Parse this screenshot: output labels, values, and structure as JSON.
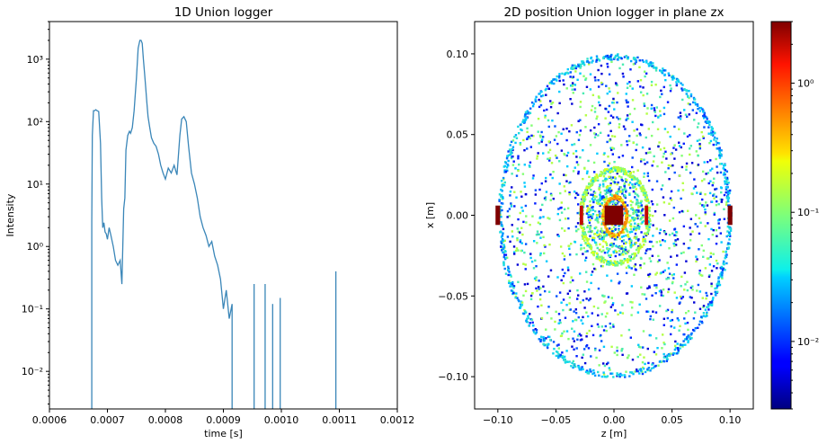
{
  "chart_data": [
    {
      "type": "line",
      "title": "1D Union logger",
      "xlabel": "time [s]",
      "ylabel": "Intensity",
      "yscale": "log",
      "xlim": [
        0.0006,
        0.0012
      ],
      "ylim": [
        0.0025,
        4000
      ],
      "xticks": [
        0.0006,
        0.0007,
        0.0008,
        0.0009,
        0.001,
        0.0011,
        0.0012
      ],
      "xtick_labels": [
        "0.0006",
        "0.0007",
        "0.0008",
        "0.0009",
        "0.0010",
        "0.0011",
        "0.0012"
      ],
      "yticks": [
        0.01,
        0.1,
        1,
        10,
        100,
        1000
      ],
      "ytick_labels": [
        "10⁻²",
        "10⁻¹",
        "10⁰",
        "10¹",
        "10²",
        "10³"
      ],
      "series_color": "#3a86b8",
      "x": [
        0.000673,
        0.000674,
        0.000676,
        0.000678,
        0.00068,
        0.000682,
        0.000685,
        0.000688,
        0.00069,
        0.000692,
        0.000694,
        0.000696,
        0.000698,
        0.0007,
        0.000703,
        0.000706,
        0.00071,
        0.000714,
        0.000718,
        0.000722,
        0.000725,
        0.000728,
        0.00073,
        0.000732,
        0.000735,
        0.000738,
        0.00074,
        0.000743,
        0.000746,
        0.00075,
        0.000753,
        0.000756,
        0.000758,
        0.00076,
        0.000762,
        0.000764,
        0.000766,
        0.000768,
        0.00077,
        0.000773,
        0.000776,
        0.00078,
        0.000784,
        0.000788,
        0.000792,
        0.000796,
        0.0008,
        0.000805,
        0.00081,
        0.000815,
        0.00082,
        0.000825,
        0.000828,
        0.000832,
        0.000836,
        0.00084,
        0.000845,
        0.00085,
        0.000855,
        0.00086,
        0.000865,
        0.00087,
        0.000875,
        0.00088,
        0.000885,
        0.00089,
        0.000895,
        0.0009,
        0.000905,
        0.00091,
        0.000915
      ],
      "y": [
        2.5,
        60,
        150,
        150,
        155,
        150,
        145,
        45,
        6,
        2.0,
        2.4,
        1.7,
        1.6,
        1.3,
        2.0,
        1.5,
        1.0,
        0.6,
        0.5,
        0.6,
        0.25,
        4,
        6,
        35,
        60,
        70,
        65,
        80,
        150,
        500,
        1500,
        2000,
        2000,
        1800,
        1000,
        600,
        350,
        200,
        120,
        80,
        55,
        45,
        40,
        30,
        20,
        15,
        12,
        18,
        15,
        20,
        14,
        60,
        110,
        120,
        100,
        40,
        15,
        10,
        6,
        3,
        2.0,
        1.5,
        1.0,
        1.2,
        0.7,
        0.5,
        0.3,
        0.1,
        0.2,
        0.07,
        0.12
      ],
      "spikes": [
        {
          "x": 0.000953,
          "y": 0.25
        },
        {
          "x": 0.000972,
          "y": 0.25
        },
        {
          "x": 0.000985,
          "y": 0.12
        },
        {
          "x": 0.000998,
          "y": 0.15
        },
        {
          "x": 0.001094,
          "y": 0.4
        }
      ]
    },
    {
      "type": "heatmap",
      "title": "2D position Union logger in plane zx",
      "xlabel": "z [m]",
      "ylabel": "x [m]",
      "xlim": [
        -0.12,
        0.12
      ],
      "ylim": [
        -0.12,
        0.12
      ],
      "xticks": [
        -0.1,
        -0.05,
        0.0,
        0.05,
        0.1
      ],
      "xtick_labels": [
        "−0.10",
        "−0.05",
        "0.00",
        "0.05",
        "0.10"
      ],
      "yticks": [
        -0.1,
        -0.05,
        0.0,
        0.05,
        0.1
      ],
      "ytick_labels": [
        "−0.10",
        "−0.05",
        "0.00",
        "0.05",
        "0.10"
      ],
      "colormap": "jet",
      "color_scale": "log",
      "color_range": [
        0.003,
        3
      ],
      "colorbar_ticks": [
        0.01,
        0.1,
        1
      ],
      "colorbar_tick_labels": [
        "10⁻²",
        "10⁻¹",
        "10⁰"
      ],
      "structures": [
        {
          "kind": "ellipse-ring",
          "center": [
            0,
            0
          ],
          "radius_z": 0.1,
          "radius_x": 0.1,
          "level": 0.02
        },
        {
          "kind": "ellipse-ring",
          "center": [
            0,
            0
          ],
          "radius_z": 0.03,
          "radius_x": 0.03,
          "level": 0.08
        },
        {
          "kind": "ellipse-ring",
          "center": [
            0,
            0
          ],
          "radius_z": 0.01,
          "radius_x": 0.012,
          "level": 0.4
        },
        {
          "kind": "block",
          "center": [
            0,
            0
          ],
          "half_z": 0.008,
          "half_x": 0.006,
          "level": 3
        },
        {
          "kind": "block",
          "center": [
            -0.1,
            0
          ],
          "half_z": 0.002,
          "half_x": 0.006,
          "level": 3
        },
        {
          "kind": "block",
          "center": [
            0.1,
            0
          ],
          "half_z": 0.002,
          "half_x": 0.006,
          "level": 3
        },
        {
          "kind": "block",
          "center": [
            -0.028,
            0
          ],
          "half_z": 0.0015,
          "half_x": 0.006,
          "level": 2
        },
        {
          "kind": "block",
          "center": [
            0.028,
            0
          ],
          "half_z": 0.0015,
          "half_x": 0.006,
          "level": 2
        }
      ]
    }
  ]
}
